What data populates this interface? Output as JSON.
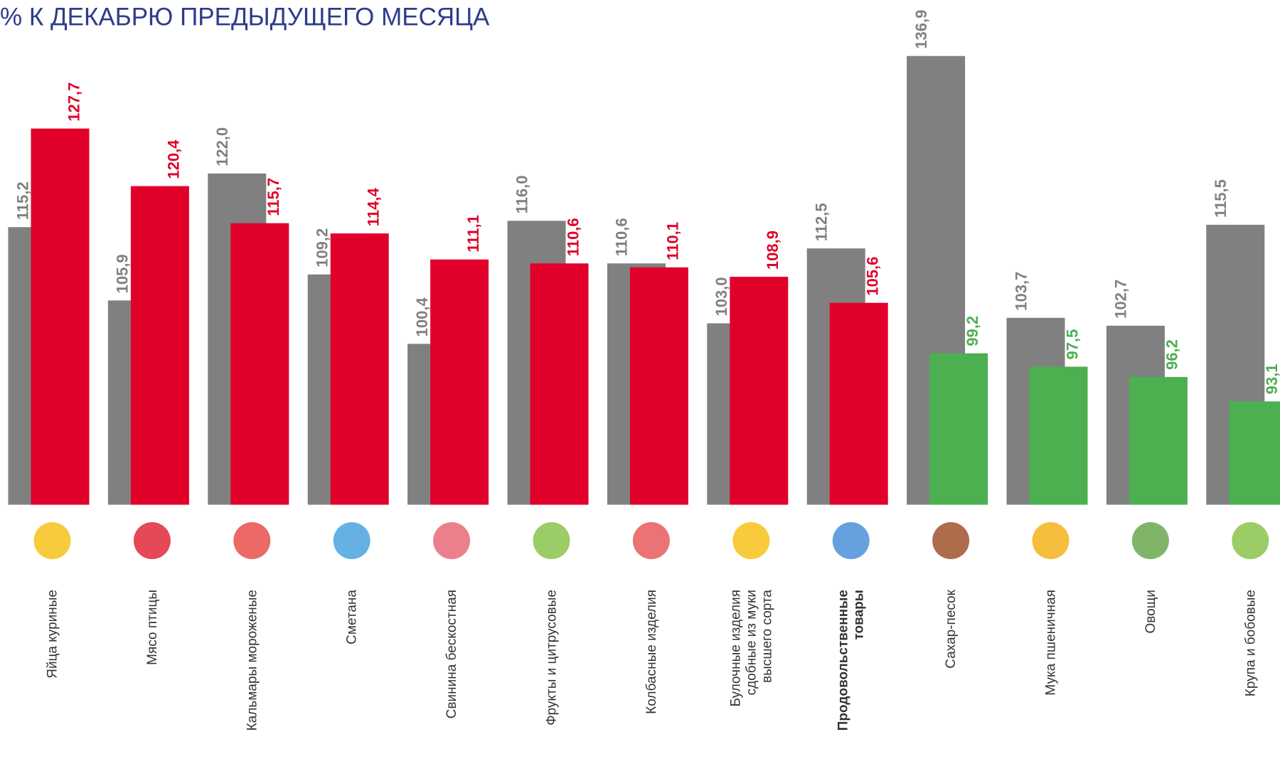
{
  "chart_data": {
    "type": "bar",
    "title": "% К ДЕКАБРЮ ПРЕДЫДУЩЕГО МЕСЯЦА",
    "categories": [
      "Яйца куриные",
      "Мясо птицы",
      "Кальмары мороженые",
      "Сметана",
      "Свинина бескостная",
      "Фрукты и цитрусовые",
      "Колбасные изделия",
      "Булочные изделия\nсдобные из муки\nвысшего сорта",
      "Продовольственные\nтовары",
      "Сахар-песок",
      "Мука пшеничная",
      "Овощи",
      "Крупа и бобовые"
    ],
    "bold_index": 8,
    "series": [
      {
        "color": "#808080",
        "values": [
          115.2,
          105.9,
          122.0,
          109.2,
          100.4,
          116.0,
          110.6,
          103.0,
          112.5,
          136.9,
          103.7,
          102.7,
          115.5
        ],
        "value_labels": [
          "115,2",
          "105,9",
          "122,0",
          "109,2",
          "100,4",
          "116,0",
          "110,6",
          "103,0",
          "112,5",
          "136,9",
          "103,7",
          "102,7",
          "115,5"
        ]
      },
      {
        "colors": [
          "#e0002a",
          "#e0002a",
          "#e0002a",
          "#e0002a",
          "#e0002a",
          "#e0002a",
          "#e0002a",
          "#e0002a",
          "#e0002a",
          "#4caf50",
          "#4caf50",
          "#4caf50",
          "#4caf50"
        ],
        "values": [
          127.7,
          120.4,
          115.7,
          114.4,
          111.1,
          110.6,
          110.1,
          108.9,
          105.6,
          99.2,
          97.5,
          96.2,
          93.1
        ],
        "value_labels": [
          "127,7",
          "120,4",
          "115,7",
          "114,4",
          "111,1",
          "110,6",
          "110,1",
          "108,9",
          "105,6",
          "99,2",
          "97,5",
          "96,2",
          "93,1"
        ]
      }
    ],
    "ylim": [
      80,
      144
    ]
  }
}
